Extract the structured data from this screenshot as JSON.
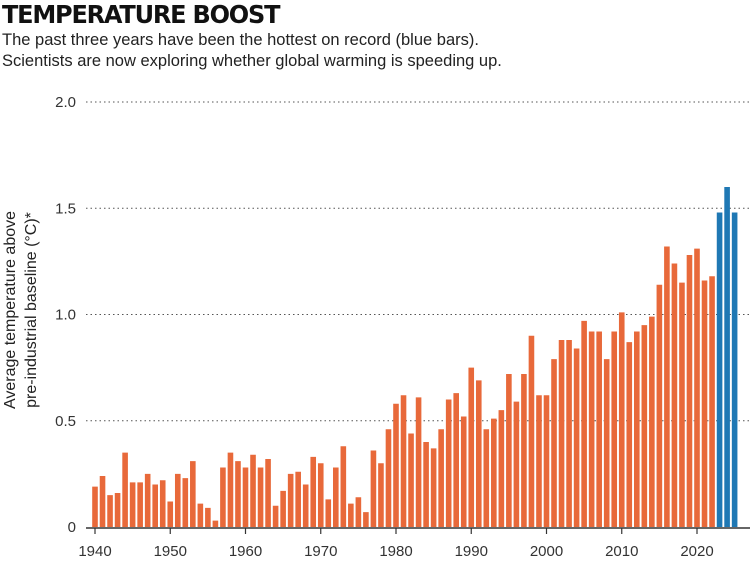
{
  "title": "TEMPERATURE BOOST",
  "subtitle_lines": [
    "The past three years have been the hottest on record (blue bars).",
    "Scientists are now exploring whether global warming is speeding up."
  ],
  "colors": {
    "orange": "#e8693a",
    "blue": "#1f78b4",
    "axis": "#333333",
    "grid": "#555555"
  },
  "chart_data": {
    "type": "bar",
    "title": "TEMPERATURE BOOST",
    "ylabel_lines": [
      "Average temperature above",
      "pre-industrial baseline (°C)*"
    ],
    "xlabel": "",
    "ylim": [
      0,
      2.0
    ],
    "xlim": [
      1940,
      2024
    ],
    "yticks": [
      0,
      0.5,
      1.0,
      1.5,
      2.0
    ],
    "ytick_labels": [
      "0",
      "0.5",
      "1.0",
      "1.5",
      "2.0"
    ],
    "xticks": [
      1940,
      1950,
      1960,
      1970,
      1980,
      1990,
      2000,
      2010,
      2020
    ],
    "grid": "horizontal dotted",
    "highlighted_years": [
      2023,
      2024,
      2025
    ],
    "x": [
      1940,
      1941,
      1942,
      1943,
      1944,
      1945,
      1946,
      1947,
      1948,
      1949,
      1950,
      1951,
      1952,
      1953,
      1954,
      1955,
      1956,
      1957,
      1958,
      1959,
      1960,
      1961,
      1962,
      1963,
      1964,
      1965,
      1966,
      1967,
      1968,
      1969,
      1970,
      1971,
      1972,
      1973,
      1974,
      1975,
      1976,
      1977,
      1978,
      1979,
      1980,
      1981,
      1982,
      1983,
      1984,
      1985,
      1986,
      1987,
      1988,
      1989,
      1990,
      1991,
      1992,
      1993,
      1994,
      1995,
      1996,
      1997,
      1998,
      1999,
      2000,
      2001,
      2002,
      2003,
      2004,
      2005,
      2006,
      2007,
      2008,
      2009,
      2010,
      2011,
      2012,
      2013,
      2014,
      2015,
      2016,
      2017,
      2018,
      2019,
      2020,
      2021,
      2022,
      2023,
      2024,
      2025
    ],
    "values": [
      0.19,
      0.24,
      0.15,
      0.16,
      0.35,
      0.21,
      0.21,
      0.25,
      0.2,
      0.22,
      0.12,
      0.25,
      0.23,
      0.31,
      0.11,
      0.09,
      0.03,
      0.28,
      0.35,
      0.31,
      0.28,
      0.34,
      0.28,
      0.32,
      0.1,
      0.17,
      0.25,
      0.26,
      0.2,
      0.33,
      0.3,
      0.13,
      0.28,
      0.38,
      0.11,
      0.14,
      0.07,
      0.36,
      0.3,
      0.46,
      0.58,
      0.62,
      0.44,
      0.61,
      0.4,
      0.37,
      0.46,
      0.6,
      0.63,
      0.52,
      0.75,
      0.69,
      0.46,
      0.51,
      0.55,
      0.72,
      0.59,
      0.72,
      0.9,
      0.62,
      0.62,
      0.79,
      0.88,
      0.88,
      0.84,
      0.97,
      0.92,
      0.92,
      0.79,
      0.92,
      1.01,
      0.87,
      0.92,
      0.95,
      0.99,
      1.14,
      1.32,
      1.24,
      1.15,
      1.28,
      1.31,
      1.16,
      1.18,
      1.48,
      1.6,
      1.48
    ]
  }
}
